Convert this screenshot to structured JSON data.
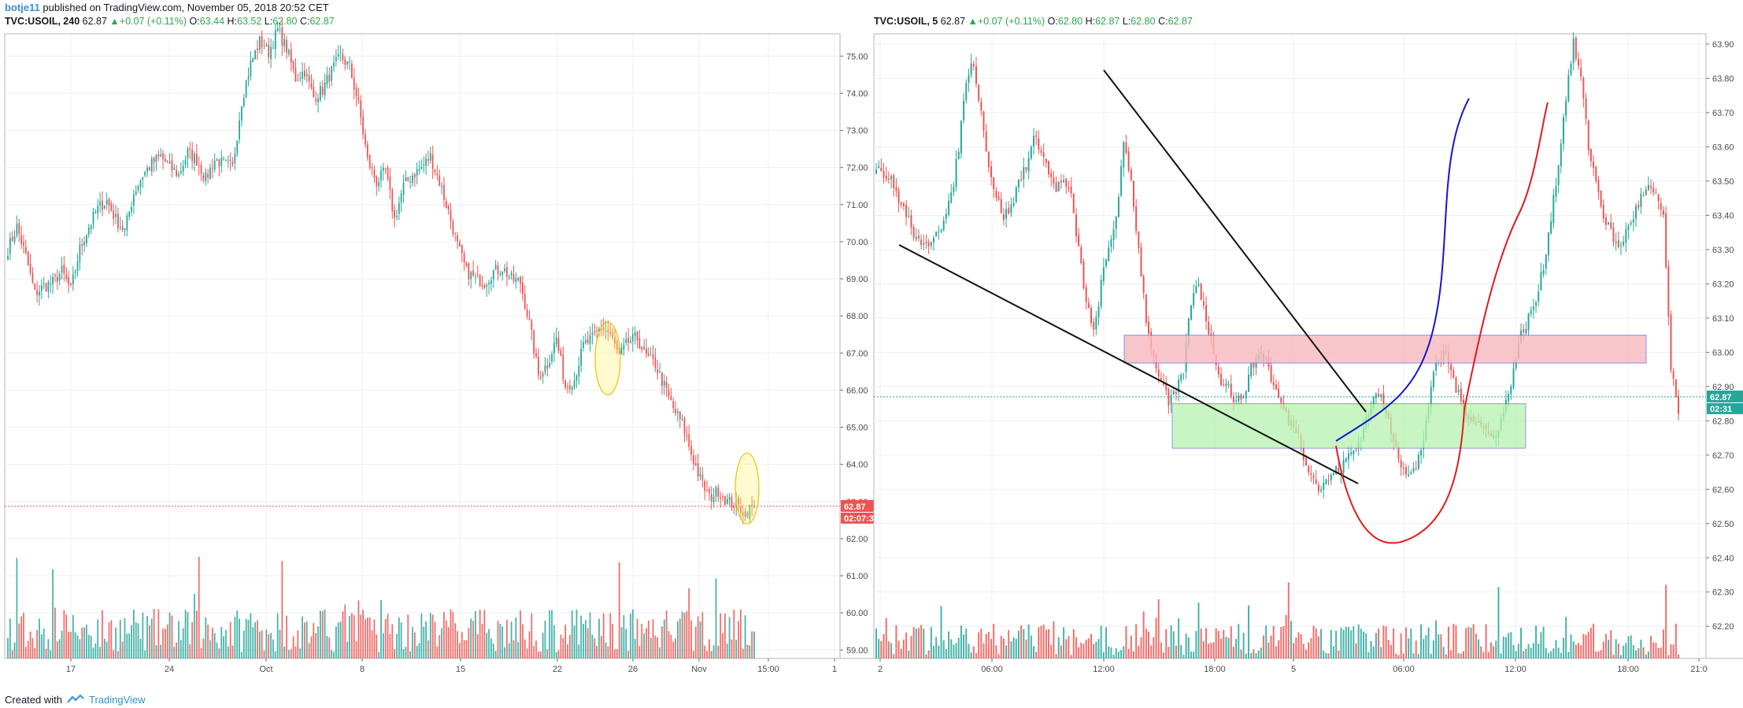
{
  "header": {
    "author": "botje11",
    "published": "published on TradingView.com, November 05, 2018 20:52 CET"
  },
  "footer": {
    "created": "Created with",
    "brand": "TradingView"
  },
  "colors": {
    "up": "#26a69a",
    "down": "#ef5350",
    "grid": "#eceff2",
    "border": "#b2b5be",
    "blue": "#1515d0",
    "red": "#e01b1b",
    "pink": "#f7b9bd",
    "green": "#b6f2b0"
  },
  "chart_data": [
    {
      "type": "candlestick",
      "symbol": "TVC:USOIL, 240",
      "ohlc": {
        "last": "62.87",
        "change": "+0.07 (+0.11%)",
        "O": "63.44",
        "H": "63.52",
        "L": "62.80",
        "C": "62.87"
      },
      "y_ticks": [
        "75.00",
        "74.00",
        "73.00",
        "72.00",
        "71.00",
        "70.00",
        "69.00",
        "68.00",
        "67.00",
        "66.00",
        "65.00",
        "64.00",
        "63.00",
        "62.00",
        "61.00",
        "60.00",
        "59.00"
      ],
      "x_ticks": [
        "17",
        "24",
        "Oct",
        "8",
        "15",
        "22",
        "26",
        "Nov",
        "15:00",
        "1"
      ],
      "ylim": [
        58.9,
        75.6
      ],
      "price_tag": "62.87",
      "countdown": "02:07:3",
      "close_series": [
        69.8,
        70.4,
        69.6,
        68.6,
        68.8,
        68.9,
        69.2,
        68.7,
        69.8,
        70.4,
        70.9,
        71.1,
        70.6,
        70.3,
        71.3,
        71.8,
        72.1,
        72.3,
        72.0,
        71.8,
        72.4,
        72.2,
        71.7,
        72.2,
        72.1,
        72.0,
        73.8,
        74.8,
        75.4,
        75.1,
        75.7,
        75.2,
        74.4,
        74.6,
        73.9,
        74.1,
        74.6,
        75.0,
        74.7,
        73.7,
        72.2,
        71.6,
        71.9,
        70.6,
        71.5,
        71.8,
        72.0,
        72.3,
        71.6,
        70.8,
        69.9,
        69.2,
        69.0,
        68.9,
        69.2,
        69.3,
        69.0,
        68.9,
        67.8,
        66.4,
        66.7,
        67.4,
        66.1,
        66.3,
        67.2,
        67.4,
        67.7,
        67.5,
        66.9,
        67.3,
        67.4,
        66.9,
        66.7,
        66.1,
        65.5,
        65.1,
        64.3,
        63.6,
        63.1,
        63.3,
        63.0,
        62.9,
        62.7,
        62.9
      ]
    },
    {
      "type": "candlestick",
      "symbol": "TVC:USOIL, 5",
      "ohlc": {
        "last": "62.87",
        "change": "+0.07 (+0.11%)",
        "O": "62.80",
        "H": "62.87",
        "L": "62.80",
        "C": "62.87"
      },
      "y_ticks": [
        "63.90",
        "63.80",
        "63.70",
        "63.60",
        "63.50",
        "63.40",
        "63.30",
        "63.20",
        "63.10",
        "63.00",
        "62.90",
        "62.80",
        "62.70",
        "62.60",
        "62.50",
        "62.40",
        "62.30",
        "62.20"
      ],
      "x_ticks": [
        "2",
        "06:00",
        "12:00",
        "18:00",
        "5",
        "06:00",
        "12:00",
        "18:00",
        "21:0"
      ],
      "ylim": [
        62.12,
        63.93
      ],
      "price_tag": "62.87",
      "countdown": "02:31",
      "close_series": [
        63.55,
        63.52,
        63.5,
        63.45,
        63.4,
        63.35,
        63.3,
        63.32,
        63.36,
        63.38,
        63.45,
        63.6,
        63.8,
        63.85,
        63.7,
        63.55,
        63.45,
        63.4,
        63.42,
        63.5,
        63.55,
        63.62,
        63.6,
        63.52,
        63.48,
        63.5,
        63.45,
        63.3,
        63.15,
        63.05,
        63.2,
        63.3,
        63.4,
        63.6,
        63.5,
        63.3,
        63.1,
        62.98,
        62.92,
        62.85,
        62.88,
        62.95,
        63.15,
        63.2,
        63.1,
        63.0,
        62.92,
        62.9,
        62.85,
        62.88,
        62.95,
        63.0,
        62.98,
        62.9,
        62.85,
        62.8,
        62.78,
        62.7,
        62.65,
        62.6,
        62.62,
        62.65,
        62.66,
        62.7,
        62.72,
        62.78,
        62.85,
        62.88,
        62.82,
        62.75,
        62.68,
        62.64,
        62.66,
        62.75,
        62.9,
        62.98,
        63.0,
        62.92,
        62.85,
        62.82,
        62.8,
        62.78,
        62.75,
        62.78,
        62.85,
        62.95,
        63.05,
        63.1,
        63.15,
        63.25,
        63.4,
        63.55,
        63.75,
        63.9,
        63.8,
        63.6,
        63.5,
        63.4,
        63.35,
        63.3,
        63.35,
        63.4,
        63.45,
        63.48,
        63.45,
        63.4,
        62.95,
        62.82
      ]
    }
  ]
}
